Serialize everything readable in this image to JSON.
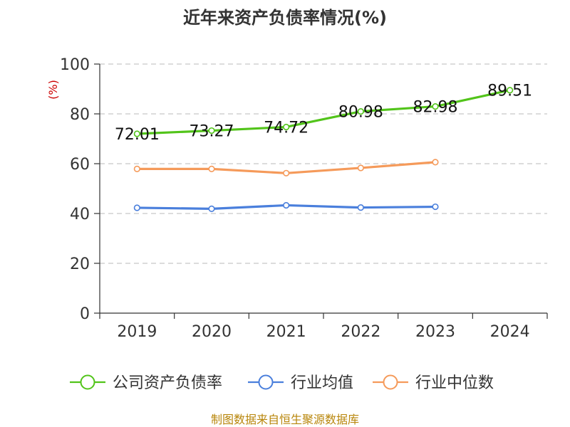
{
  "chart_data": {
    "type": "line",
    "title": "近年来资产负债率情况(%)",
    "ylabel": "(%)",
    "xlabel": "",
    "categories": [
      "2019",
      "2020",
      "2021",
      "2022",
      "2023",
      "2024"
    ],
    "ylim": [
      0,
      100
    ],
    "yticks": [
      0,
      20,
      40,
      60,
      80,
      100
    ],
    "grid": true,
    "legend_position": "bottom",
    "series": [
      {
        "name": "公司资产负债率",
        "color": "#52c41a",
        "values": [
          72.01,
          73.27,
          74.72,
          80.98,
          82.98,
          89.51
        ],
        "labels": [
          "72.01",
          "73.27",
          "74.72",
          "80.98",
          "82.98",
          "89.51"
        ]
      },
      {
        "name": "行业均值",
        "color": "#4a7fdc",
        "values": [
          42.3,
          41.9,
          43.3,
          42.4,
          42.7,
          null
        ]
      },
      {
        "name": "行业中位数",
        "color": "#f59a5a",
        "values": [
          57.9,
          57.9,
          56.2,
          58.3,
          60.6,
          null
        ]
      }
    ],
    "source": "制图数据来自恒生聚源数据库"
  }
}
